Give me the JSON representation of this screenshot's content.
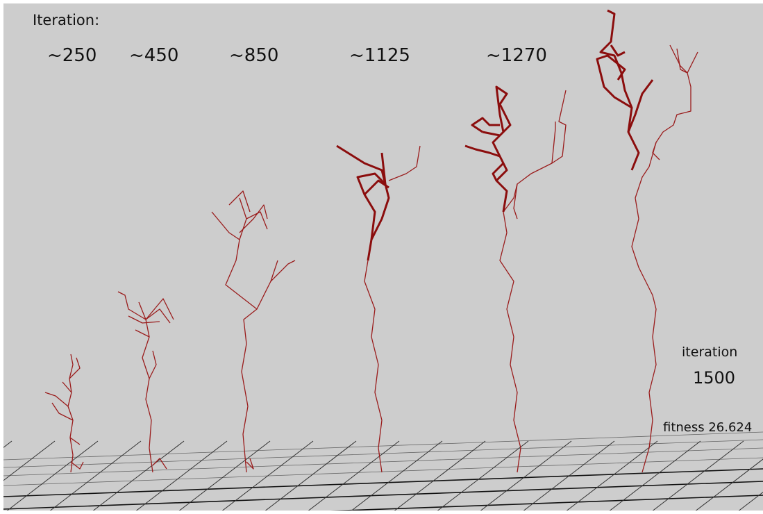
{
  "header": {
    "label": "Iteration:"
  },
  "stages": [
    {
      "label": "~250"
    },
    {
      "label": "~450"
    },
    {
      "label": "~850"
    },
    {
      "label": "~1125"
    },
    {
      "label": "~1270"
    }
  ],
  "final": {
    "label": "iteration",
    "value": 1500,
    "fitness": "fitness 26.624"
  }
}
